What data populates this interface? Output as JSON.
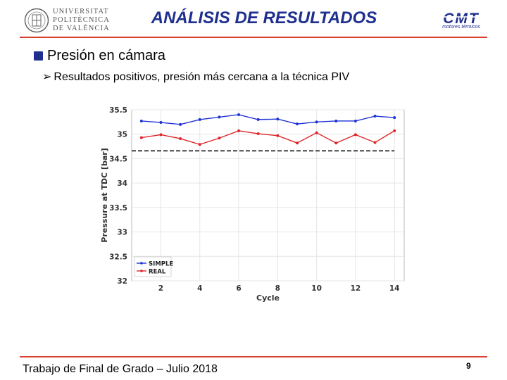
{
  "header": {
    "university_lines": [
      "UNIVERSITAT",
      "POLITÈCNICA",
      "DE VALÈNCIA"
    ],
    "title": "ANÁLISIS DE RESULTADOS",
    "cmt_logo_text": "CMT",
    "cmt_subtitle": "motores térmicos"
  },
  "content": {
    "bullet1": "Presión en cámara",
    "bullet2": "Resultados positivos, presión más cercana a la técnica PIV"
  },
  "footer": {
    "text": "Trabajo de Final de Grado – Julio 2018",
    "page_number": "9"
  },
  "colors": {
    "title": "#1f2f8f",
    "rule": "#d94030",
    "simple": "#1f32d6",
    "real": "#e0262a"
  },
  "chart_data": {
    "type": "line",
    "xlabel": "Cycle",
    "ylabel": "Pressure at TDC [bar]",
    "xlim": [
      0.5,
      14.5
    ],
    "ylim": [
      32,
      35.5
    ],
    "xticks": [
      2,
      4,
      6,
      8,
      10,
      12,
      14
    ],
    "yticks": [
      32,
      32.5,
      33,
      33.5,
      34,
      34.5,
      35,
      35.5
    ],
    "ytick_labels": [
      "32",
      "32.5",
      "33",
      "33.5",
      "34",
      "34.5",
      "35",
      "35.5"
    ],
    "grid": true,
    "legend_position": "bottom-left",
    "x": [
      1,
      2,
      3,
      4,
      5,
      6,
      7,
      8,
      9,
      10,
      11,
      12,
      13,
      14
    ],
    "series": [
      {
        "name": "SIMPLE",
        "color": "#1f32d6",
        "values": [
          35.27,
          35.24,
          35.2,
          35.3,
          35.35,
          35.4,
          35.3,
          35.31,
          35.21,
          35.25,
          35.27,
          35.27,
          35.37,
          35.34
        ]
      },
      {
        "name": "REAL",
        "color": "#e0262a",
        "values": [
          34.93,
          34.99,
          34.91,
          34.79,
          34.92,
          35.07,
          35.01,
          34.97,
          34.82,
          35.03,
          34.82,
          34.99,
          34.83,
          35.07
        ]
      }
    ],
    "reference_line": {
      "value": 34.66,
      "style": "dashed",
      "color": "#333333",
      "x_from": 0.5,
      "x_to": 14
    }
  }
}
